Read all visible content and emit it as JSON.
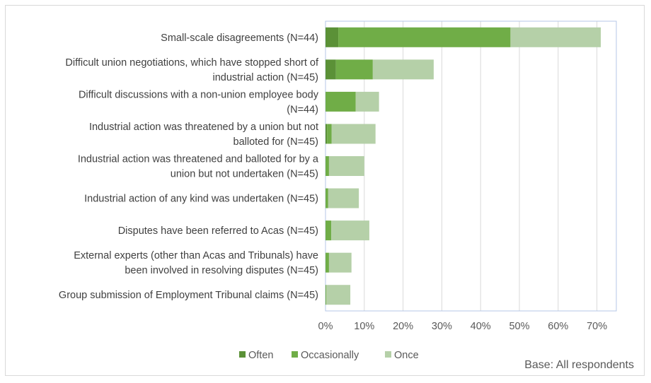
{
  "chart_data": {
    "type": "bar",
    "orientation": "horizontal",
    "stacked": true,
    "categories": [
      [
        "Small-scale disagreements (N=44)"
      ],
      [
        "Difficult union negotiations, which have stopped short of",
        "industrial action (N=45)"
      ],
      [
        "Difficult discussions with a non-union employee body",
        "(N=44)"
      ],
      [
        "Industrial action was threatened by a union but not",
        "balloted for (N=45)"
      ],
      [
        "Industrial action was threatened and balloted for by a",
        "union but not undertaken (N=45)"
      ],
      [
        "Industrial action of any kind was undertaken (N=45)"
      ],
      [
        "Disputes have been referred to Acas (N=45)"
      ],
      [
        "External experts (other than Acas and Tribunals) have",
        "been involved in resolving disputes (N=45)"
      ],
      [
        "Group submission of Employment Tribunal claims (N=45)"
      ]
    ],
    "series": [
      {
        "name": "Often",
        "color": "#5b9137",
        "values": [
          3.3,
          2.7,
          0,
          0.4,
          0,
          0,
          0,
          0,
          0
        ]
      },
      {
        "name": "Occasionally",
        "color": "#70ad47",
        "values": [
          44.4,
          9.5,
          7.8,
          1.2,
          0.9,
          0.7,
          1.5,
          0.9,
          0.2
        ]
      },
      {
        "name": "Once",
        "color": "#b5d0a8",
        "values": [
          23.3,
          15.7,
          6.0,
          11.3,
          9.1,
          7.9,
          9.8,
          5.8,
          6.2
        ]
      }
    ],
    "xlim": [
      0,
      75
    ],
    "xticks": [
      "0%",
      "10%",
      "20%",
      "30%",
      "40%",
      "50%",
      "60%",
      "70%"
    ],
    "xtick_values": [
      0,
      10,
      20,
      30,
      40,
      50,
      60,
      70
    ],
    "grid": true,
    "legend_position": "bottom",
    "note": "Base: All respondents"
  }
}
